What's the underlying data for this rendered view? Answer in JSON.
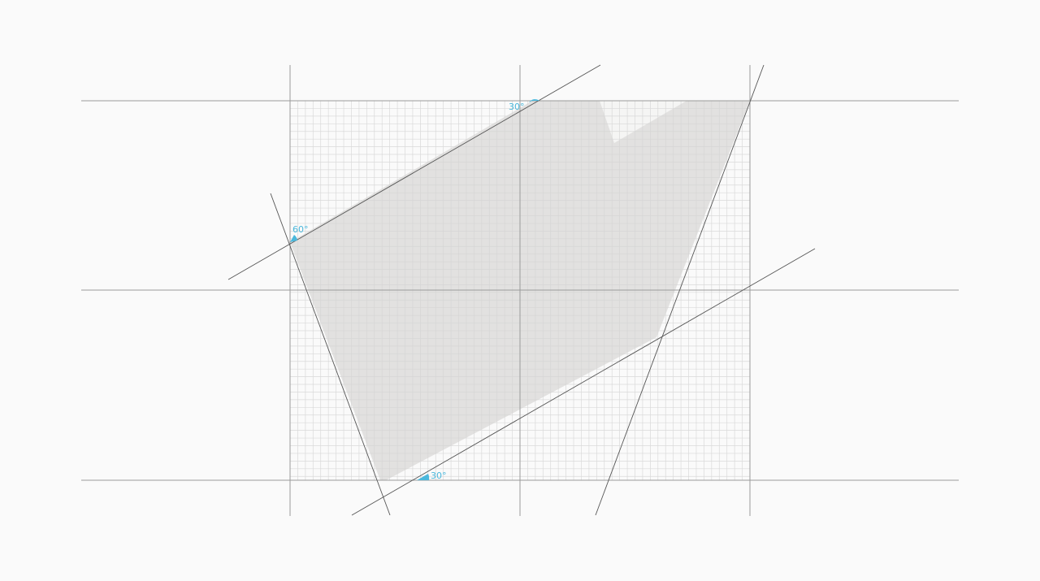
{
  "diagram": {
    "type": "geometric-construction-grid",
    "colors": {
      "background": "#fafafa",
      "fine_grid": "#d0d0d0",
      "major_lines": "#9a9a9a",
      "construction_lines": "#555555",
      "shape_fill": "#e2e1e0",
      "shape_notch": "#f5f5f4",
      "angle_marker": "#4bb8dc"
    },
    "angle_labels": {
      "top": "30°",
      "left": "60°",
      "bottom": "30°"
    }
  }
}
